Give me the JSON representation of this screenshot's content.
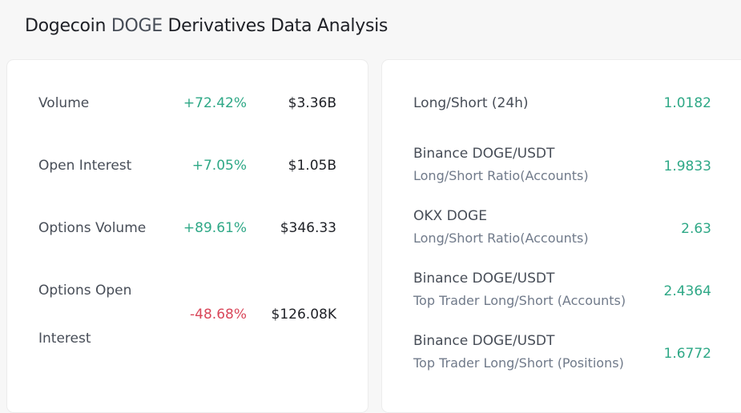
{
  "title": {
    "prefix": "Dogecoin",
    "symbol": "DOGE",
    "suffix": "Derivatives Data Analysis"
  },
  "colors": {
    "positive": "#2ea886",
    "negative": "#d9475a"
  },
  "left": [
    {
      "label": "Volume",
      "change": "+72.42%",
      "value": "$3.36B",
      "direction": "up"
    },
    {
      "label": "Open Interest",
      "change": "+7.05%",
      "value": "$1.05B",
      "direction": "up"
    },
    {
      "label": "Options Volume",
      "change": "+89.61%",
      "value": "$346.33",
      "direction": "up"
    },
    {
      "label_line1": "Options Open",
      "label_line2": "Interest",
      "change": "-48.68%",
      "value": "$126.08K",
      "direction": "down"
    }
  ],
  "right": [
    {
      "label": "Long/Short (24h)",
      "value": "1.0182"
    },
    {
      "label": "Binance DOGE/USDT",
      "sub": "Long/Short Ratio(Accounts)",
      "value": "1.9833"
    },
    {
      "label": "OKX DOGE",
      "sub": "Long/Short Ratio(Accounts)",
      "value": "2.63"
    },
    {
      "label": "Binance DOGE/USDT",
      "sub": "Top Trader Long/Short (Accounts)",
      "value": "2.4364"
    },
    {
      "label": "Binance DOGE/USDT",
      "sub": "Top Trader Long/Short (Positions)",
      "value": "1.6772"
    }
  ]
}
